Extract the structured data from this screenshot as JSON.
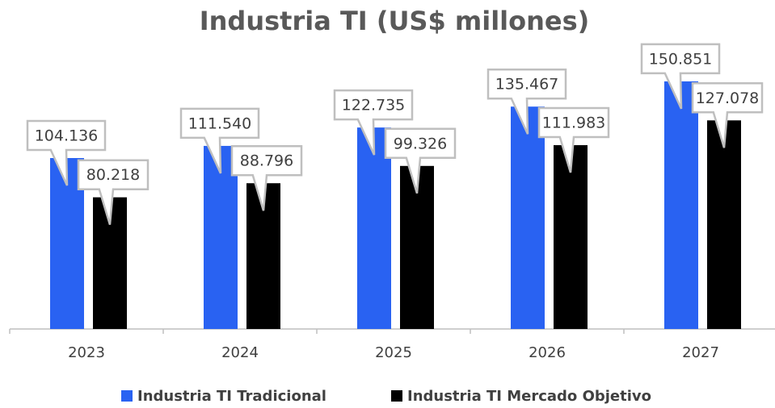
{
  "chart_data": {
    "type": "bar",
    "title": "Industria TI (US$ millones)",
    "categories": [
      "2023",
      "2024",
      "2025",
      "2026",
      "2027"
    ],
    "series": [
      {
        "name": "Industria TI Tradicional",
        "color": "#2962f2",
        "values": [
          104136,
          111540,
          122735,
          135467,
          150851
        ],
        "value_labels": [
          "104.136",
          "111.540",
          "122.735",
          "135.467",
          "150.851"
        ]
      },
      {
        "name": "Industria TI Mercado Objetivo",
        "color": "#000000",
        "values": [
          80218,
          88796,
          99326,
          111983,
          127078
        ],
        "value_labels": [
          "80.218",
          "88.796",
          "99.326",
          "111.983",
          "127.078"
        ]
      }
    ]
  }
}
